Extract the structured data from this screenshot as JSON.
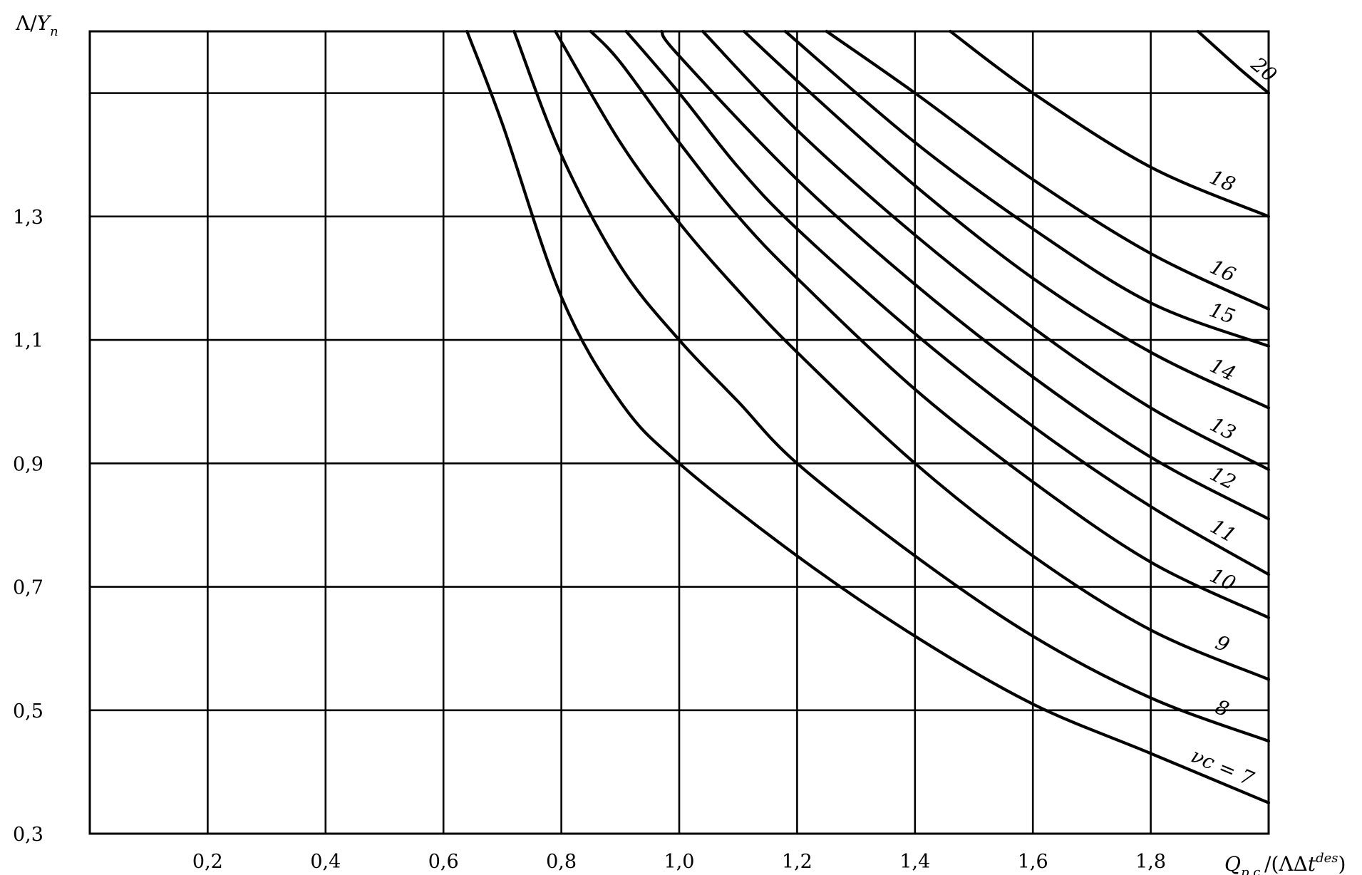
{
  "chart_data": {
    "type": "line",
    "title": "",
    "xlabel": {
      "base": "Q",
      "base_sub": "p.c.",
      "rest": "/(ΛΔ",
      "t": "t",
      "t_sup": "des",
      "close": ")"
    },
    "ylabel": {
      "base": "Λ/",
      "Y": "Y",
      "Y_sub": "n"
    },
    "xlim": [
      0.0,
      2.0
    ],
    "ylim": [
      0.3,
      1.6
    ],
    "x_ticks": [
      {
        "value": 0.2,
        "label": "0,2"
      },
      {
        "value": 0.4,
        "label": "0,4"
      },
      {
        "value": 0.6,
        "label": "0,6"
      },
      {
        "value": 0.8,
        "label": "0,8"
      },
      {
        "value": 1.0,
        "label": "1,0"
      },
      {
        "value": 1.2,
        "label": "1,2"
      },
      {
        "value": 1.4,
        "label": "1,4"
      },
      {
        "value": 1.6,
        "label": "1,6"
      },
      {
        "value": 1.8,
        "label": "1,8"
      }
    ],
    "y_ticks": [
      {
        "value": 0.3,
        "label": "0,3"
      },
      {
        "value": 0.5,
        "label": "0,5"
      },
      {
        "value": 0.7,
        "label": "0,7"
      },
      {
        "value": 0.9,
        "label": "0,9"
      },
      {
        "value": 1.1,
        "label": "1,1"
      },
      {
        "value": 1.3,
        "label": "1,3"
      }
    ],
    "x_grid": [
      0.2,
      0.4,
      0.6,
      0.8,
      1.0,
      1.2,
      1.4,
      1.6,
      1.8
    ],
    "y_grid": [
      0.5,
      0.7,
      0.9,
      1.1,
      1.3,
      1.5
    ],
    "grid": true,
    "series": [
      {
        "name": "7",
        "label": "νc = 7",
        "points": [
          [
            0.64,
            1.6
          ],
          [
            0.7,
            1.45
          ],
          [
            0.8,
            1.17
          ],
          [
            0.9,
            1.0
          ],
          [
            1.0,
            0.9
          ],
          [
            1.2,
            0.75
          ],
          [
            1.4,
            0.62
          ],
          [
            1.6,
            0.51
          ],
          [
            1.8,
            0.43
          ],
          [
            2.0,
            0.35
          ]
        ]
      },
      {
        "name": "8",
        "label": "8",
        "points": [
          [
            0.72,
            1.6
          ],
          [
            0.8,
            1.4
          ],
          [
            0.9,
            1.22
          ],
          [
            1.0,
            1.1
          ],
          [
            1.1,
            1.0
          ],
          [
            1.2,
            0.9
          ],
          [
            1.4,
            0.75
          ],
          [
            1.6,
            0.62
          ],
          [
            1.8,
            0.52
          ],
          [
            2.0,
            0.45
          ]
        ]
      },
      {
        "name": "9",
        "label": "9",
        "points": [
          [
            0.79,
            1.6
          ],
          [
            0.9,
            1.42
          ],
          [
            1.0,
            1.29
          ],
          [
            1.1,
            1.18
          ],
          [
            1.2,
            1.08
          ],
          [
            1.4,
            0.9
          ],
          [
            1.6,
            0.75
          ],
          [
            1.8,
            0.63
          ],
          [
            2.0,
            0.55
          ]
        ]
      },
      {
        "name": "10",
        "label": "10",
        "points": [
          [
            0.85,
            1.6
          ],
          [
            0.9,
            1.55
          ],
          [
            1.0,
            1.42
          ],
          [
            1.1,
            1.3
          ],
          [
            1.2,
            1.2
          ],
          [
            1.4,
            1.02
          ],
          [
            1.6,
            0.87
          ],
          [
            1.8,
            0.74
          ],
          [
            2.0,
            0.65
          ]
        ]
      },
      {
        "name": "11",
        "label": "11",
        "points": [
          [
            0.91,
            1.6
          ],
          [
            1.0,
            1.5
          ],
          [
            1.1,
            1.38
          ],
          [
            1.2,
            1.28
          ],
          [
            1.4,
            1.11
          ],
          [
            1.6,
            0.96
          ],
          [
            1.8,
            0.83
          ],
          [
            2.0,
            0.72
          ]
        ]
      },
      {
        "name": "12",
        "label": "12",
        "points": [
          [
            0.97,
            1.6
          ],
          [
            1.0,
            1.56
          ],
          [
            1.2,
            1.36
          ],
          [
            1.4,
            1.19
          ],
          [
            1.6,
            1.04
          ],
          [
            1.8,
            0.91
          ],
          [
            2.0,
            0.81
          ]
        ]
      },
      {
        "name": "13",
        "label": "13",
        "points": [
          [
            1.04,
            1.6
          ],
          [
            1.2,
            1.44
          ],
          [
            1.4,
            1.27
          ],
          [
            1.6,
            1.12
          ],
          [
            1.8,
            0.99
          ],
          [
            2.0,
            0.89
          ]
        ]
      },
      {
        "name": "14",
        "label": "14",
        "points": [
          [
            1.11,
            1.6
          ],
          [
            1.2,
            1.52
          ],
          [
            1.4,
            1.35
          ],
          [
            1.6,
            1.2
          ],
          [
            1.8,
            1.08
          ],
          [
            2.0,
            0.99
          ]
        ]
      },
      {
        "name": "15",
        "label": "15",
        "points": [
          [
            1.18,
            1.6
          ],
          [
            1.4,
            1.42
          ],
          [
            1.6,
            1.28
          ],
          [
            1.8,
            1.16
          ],
          [
            2.0,
            1.09
          ]
        ]
      },
      {
        "name": "16",
        "label": "16",
        "points": [
          [
            1.25,
            1.6
          ],
          [
            1.4,
            1.5
          ],
          [
            1.6,
            1.36
          ],
          [
            1.8,
            1.24
          ],
          [
            2.0,
            1.15
          ]
        ]
      },
      {
        "name": "18",
        "label": "18",
        "points": [
          [
            1.46,
            1.6
          ],
          [
            1.6,
            1.5
          ],
          [
            1.8,
            1.38
          ],
          [
            2.0,
            1.3
          ]
        ]
      },
      {
        "name": "20",
        "label": "20",
        "points": [
          [
            1.88,
            1.6
          ],
          [
            1.95,
            1.54
          ],
          [
            2.0,
            1.5
          ]
        ]
      }
    ]
  }
}
